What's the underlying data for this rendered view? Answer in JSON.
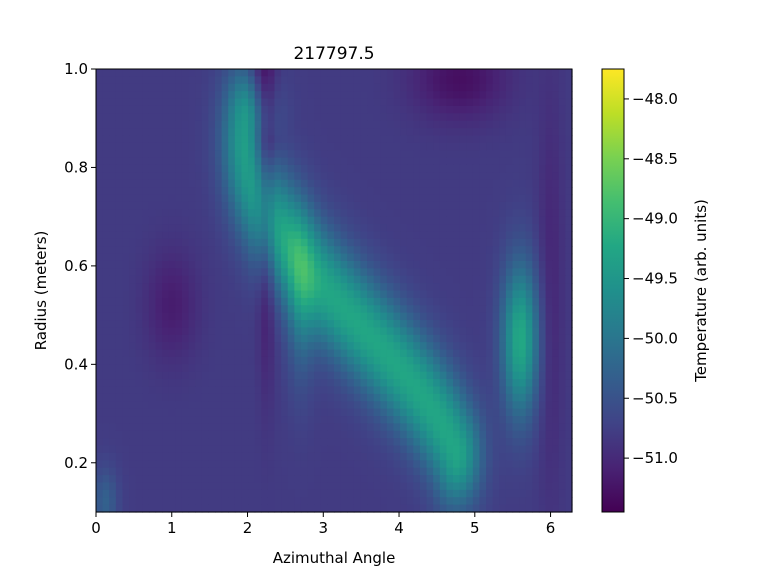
{
  "chart_data": {
    "type": "heatmap",
    "title": "217797.5",
    "xlabel": "Azimuthal Angle",
    "ylabel": "Radius (meters)",
    "xlim": [
      0,
      6.283
    ],
    "ylim": [
      0.1,
      1.0
    ],
    "x_ticks": [
      0,
      1,
      2,
      3,
      4,
      5,
      6
    ],
    "y_ticks": [
      0.2,
      0.4,
      0.6,
      0.8,
      1.0
    ],
    "colorbar": {
      "label": "Temperature (arb. units)",
      "range": [
        -51.45,
        -47.75
      ],
      "ticks": [
        -48.0,
        -48.5,
        -49.0,
        -49.5,
        -50.0,
        -50.5,
        -51.0
      ],
      "tick_labels": [
        "−48.0",
        "−48.5",
        "−49.0",
        "−49.5",
        "−50.0",
        "−50.5",
        "−51.0"
      ],
      "colormap": "viridis"
    },
    "field": {
      "base": -50.8,
      "features": [
        {
          "kind": "band",
          "cx": 3.45,
          "cy": 0.55,
          "a": 1.45,
          "ry": 0.37,
          "phase": 0.28,
          "amp": 1.55,
          "width": 0.23,
          "ymin": 0.22,
          "ymax": 0.9
        },
        {
          "kind": "blob",
          "cx": 5.6,
          "cy": 0.45,
          "sx": 0.17,
          "sy": 0.11,
          "amp": 1.6
        },
        {
          "kind": "blob",
          "cx": 2.7,
          "cy": 0.52,
          "sx": 0.13,
          "sy": 0.12,
          "amp": 0.6
        },
        {
          "kind": "blob",
          "cx": 2.2,
          "cy": 0.95,
          "sx": 0.13,
          "sy": 0.13,
          "amp": -0.8
        },
        {
          "kind": "blob",
          "cx": 2.25,
          "cy": 0.65,
          "sx": 0.08,
          "sy": 0.2,
          "amp": -0.45
        },
        {
          "kind": "blob",
          "cx": 4.8,
          "cy": 0.98,
          "sx": 0.45,
          "sy": 0.06,
          "amp": -0.5
        },
        {
          "kind": "blob",
          "cx": 1.0,
          "cy": 0.52,
          "sx": 0.25,
          "sy": 0.08,
          "amp": -0.35
        },
        {
          "kind": "blob",
          "cx": 0.12,
          "cy": 0.12,
          "sx": 0.12,
          "sy": 0.05,
          "amp": 0.5
        },
        {
          "kind": "blob",
          "cx": 6.0,
          "cy": 0.55,
          "sx": 0.12,
          "sy": 0.3,
          "amp": -0.25
        }
      ]
    }
  }
}
